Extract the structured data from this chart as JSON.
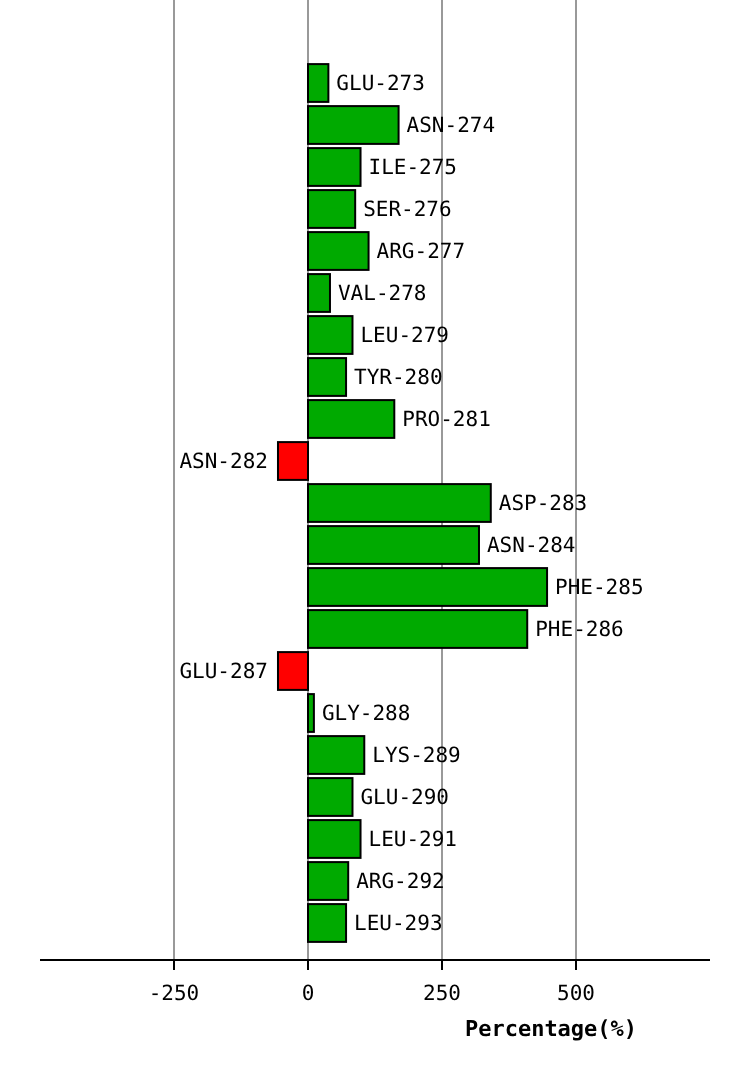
{
  "chart_data": {
    "type": "bar",
    "orientation": "horizontal",
    "xlabel": "Percentage(%)",
    "categories": [
      "GLU-273",
      "ASN-274",
      "ILE-275",
      "SER-276",
      "ARG-277",
      "VAL-278",
      "LEU-279",
      "TYR-280",
      "PRO-281",
      "ASN-282",
      "ASP-283",
      "ASN-284",
      "PHE-285",
      "PHE-286",
      "GLU-287",
      "GLY-288",
      "LYS-289",
      "GLU-290",
      "LEU-291",
      "ARG-292",
      "LEU-293"
    ],
    "values": [
      38,
      169,
      98,
      88,
      113,
      41,
      83,
      71,
      161,
      -56,
      341,
      319,
      446,
      409,
      -56,
      11,
      105,
      83,
      98,
      75,
      71
    ],
    "colors": [
      "#00aa00",
      "#00aa00",
      "#00aa00",
      "#00aa00",
      "#00aa00",
      "#00aa00",
      "#00aa00",
      "#00aa00",
      "#00aa00",
      "#ff0000",
      "#00aa00",
      "#00aa00",
      "#00aa00",
      "#00aa00",
      "#ff0000",
      "#00aa00",
      "#00aa00",
      "#00aa00",
      "#00aa00",
      "#00aa00",
      "#00aa00"
    ],
    "xlim": [
      -500,
      750
    ],
    "xticks": [
      -250,
      0,
      250,
      500
    ],
    "grid": "x"
  }
}
